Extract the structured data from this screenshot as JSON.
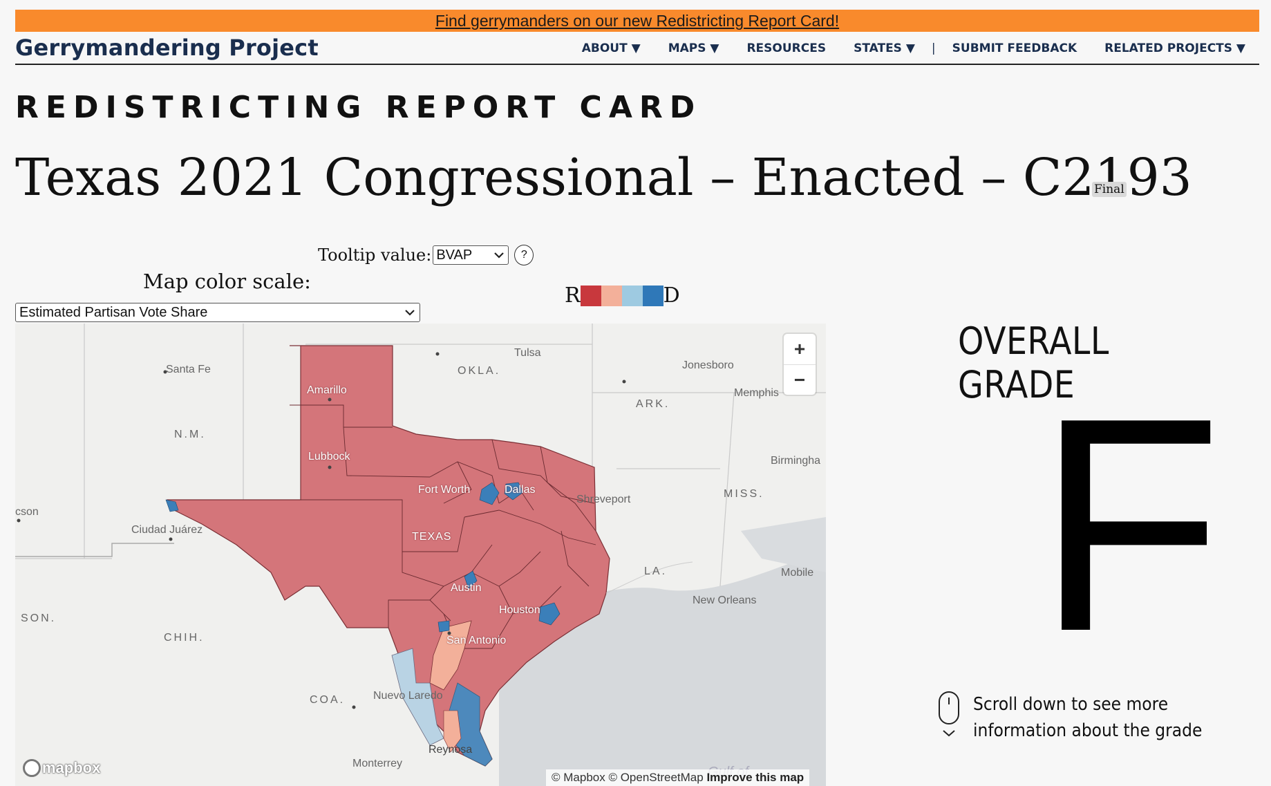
{
  "banner": {
    "text": "Find gerrymanders on our new Redistricting Report Card!"
  },
  "nav": {
    "brand": "Gerrymandering Project",
    "items": [
      "ABOUT ▼",
      "MAPS ▼",
      "RESOURCES",
      "STATES ▼",
      "SUBMIT FEEDBACK",
      "RELATED PROJECTS ▼"
    ],
    "separator": "|"
  },
  "eyebrow": "REDISTRICTING REPORT CARD",
  "title": "Texas 2021 Congressional – Enacted – C2193",
  "status_badge": "Final",
  "tooltip": {
    "label": "Tooltip value:",
    "selected": "BVAP",
    "help": "?"
  },
  "color_scale": {
    "label": "Map color scale:",
    "selected": "Estimated Partisan Vote Share"
  },
  "legend": {
    "left": "R",
    "right": "D",
    "colors": [
      "#c8383d",
      "#f3b09a",
      "#9ecae1",
      "#2f78b8"
    ]
  },
  "map": {
    "zoom_in": "+",
    "zoom_out": "−",
    "place_labels": [
      "Santa Fe",
      "OKLA.",
      "Tulsa",
      "Jonesboro",
      "Memphis",
      "ARK.",
      "N.M.",
      "Amarillo",
      "Lubbock",
      "Birmingha",
      "MISS.",
      "Fort Worth",
      "Dallas",
      "Shreveport",
      "cson",
      "Ciudad Juárez",
      "TEXAS",
      "LA.",
      "Mobile",
      "New Orleans",
      "Austin",
      "Houston",
      "SON.",
      "CHIH.",
      "San Antonio",
      "COA.",
      "Nuevo Laredo",
      "Reynosa",
      "Monterrey",
      "Gulf of"
    ],
    "attribution_a": "© Mapbox © OpenStreetMap ",
    "attribution_b": "Improve this map",
    "logo": "mapbox"
  },
  "grade": {
    "heading": "OVERALL GRADE",
    "letter": "F",
    "scroll_hint_line1": "Scroll down to see more",
    "scroll_hint_line2": "information about the grade"
  }
}
